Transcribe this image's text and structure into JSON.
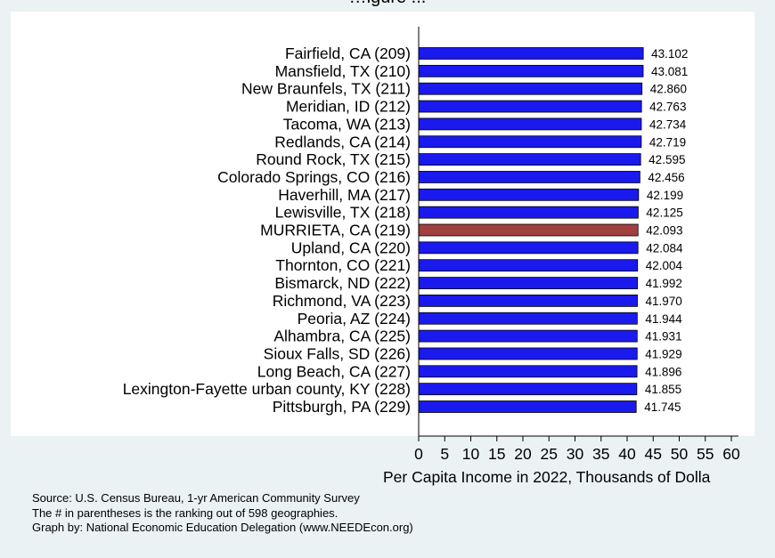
{
  "chart_data": {
    "type": "bar",
    "orientation": "horizontal",
    "title": "…igure ...",
    "xlabel": "Per Capita Income in 2022, Thousands of Dolla",
    "xlim": [
      0,
      60
    ],
    "xticks": [
      0,
      5,
      10,
      15,
      20,
      25,
      30,
      35,
      40,
      45,
      50,
      55,
      60
    ],
    "categories": [
      "Fairfield, CA (209)",
      "Mansfield, TX (210)",
      "New Braunfels, TX (211)",
      "Meridian, ID (212)",
      "Tacoma, WA (213)",
      "Redlands, CA (214)",
      "Round Rock, TX (215)",
      "Colorado Springs, CO (216)",
      "Haverhill, MA (217)",
      "Lewisville, TX (218)",
      "MURRIETA, CA (219)",
      "Upland, CA (220)",
      "Thornton, CO (221)",
      "Bismarck, ND (222)",
      "Richmond, VA (223)",
      "Peoria, AZ (224)",
      "Alhambra, CA (225)",
      "Sioux Falls, SD (226)",
      "Long Beach, CA (227)",
      "Lexington-Fayette urban county, KY (228)",
      "Pittsburgh, PA (229)"
    ],
    "values": [
      43.102,
      43.081,
      42.86,
      42.763,
      42.734,
      42.719,
      42.595,
      42.456,
      42.199,
      42.125,
      42.093,
      42.084,
      42.004,
      41.992,
      41.97,
      41.944,
      41.931,
      41.929,
      41.896,
      41.855,
      41.745
    ],
    "value_labels": [
      "43.102",
      "43.081",
      "42.860",
      "42.763",
      "42.734",
      "42.719",
      "42.595",
      "42.456",
      "42.199",
      "42.125",
      "42.093",
      "42.084",
      "42.004",
      "41.992",
      "41.970",
      "41.944",
      "41.931",
      "41.929",
      "41.896",
      "41.855",
      "41.745"
    ],
    "highlight_index": 10,
    "colors": {
      "bar": "#1a1aee",
      "highlight": "#a0403f",
      "plot_bg": "#ffffff",
      "page_bg": "#eaf2f3"
    },
    "grid": false,
    "legend": "none"
  },
  "notes": [
    "Source: U.S. Census Bureau, 1-yr American Community Survey",
    "The # in parentheses is the ranking out of 598 geographies.",
    "Graph by: National Economic Education Delegation (www.NEEDEcon.org)"
  ]
}
